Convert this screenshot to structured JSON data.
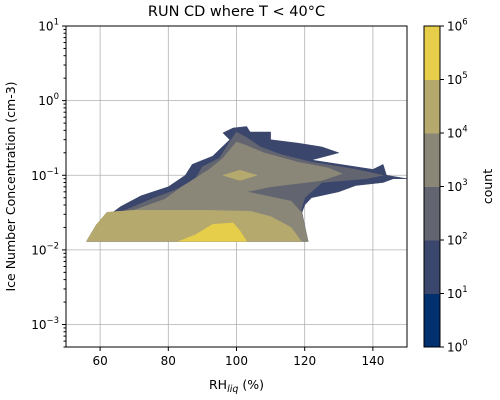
{
  "chart_data": {
    "type": "contourf",
    "title": "RUN CD where T < 40°C",
    "xlabel": "RH",
    "xlabel_sub": "liq",
    "xlabel_unit": " (%)",
    "ylabel": "Ice Number Concentration (cm-3)",
    "xlim": [
      50,
      150
    ],
    "ylim": [
      0.0005,
      10
    ],
    "yscale": "log",
    "grid": true,
    "x_ticks": [
      60,
      80,
      100,
      120,
      140
    ],
    "y_ticks": [
      {
        "value": 0.001,
        "base": "10",
        "exp": "−3"
      },
      {
        "value": 0.01,
        "base": "10",
        "exp": "−2"
      },
      {
        "value": 0.1,
        "base": "10",
        "exp": "−1"
      },
      {
        "value": 1,
        "base": "10",
        "exp": "0"
      },
      {
        "value": 10,
        "base": "10",
        "exp": "1"
      }
    ],
    "colorbar": {
      "label": "count",
      "scale": "log",
      "levels": [
        {
          "value": 1,
          "base": "10",
          "exp": "0"
        },
        {
          "value": 10,
          "base": "10",
          "exp": "1"
        },
        {
          "value": 100,
          "base": "10",
          "exp": "2"
        },
        {
          "value": 1000,
          "base": "10",
          "exp": "3"
        },
        {
          "value": 10000,
          "base": "10",
          "exp": "4"
        },
        {
          "value": 100000,
          "base": "10",
          "exp": "5"
        },
        {
          "value": 1000000,
          "base": "10",
          "exp": "6"
        }
      ],
      "colors": [
        "#00306e",
        "#3a466c",
        "#62656f",
        "#8a8779",
        "#b5a96e",
        "#e6cd4a"
      ]
    },
    "regions": [
      {
        "level": 1,
        "points": [
          [
            56,
            0.013
          ],
          [
            59,
            0.022
          ],
          [
            66,
            0.038
          ],
          [
            72,
            0.053
          ],
          [
            80,
            0.07
          ],
          [
            85,
            0.1
          ],
          [
            87,
            0.14
          ],
          [
            93,
            0.18
          ],
          [
            98,
            0.3
          ],
          [
            96,
            0.37
          ],
          [
            99,
            0.43
          ],
          [
            103,
            0.45
          ],
          [
            104,
            0.38
          ],
          [
            110,
            0.38
          ],
          [
            110,
            0.3
          ],
          [
            118,
            0.27
          ],
          [
            125,
            0.24
          ],
          [
            130,
            0.2
          ],
          [
            122,
            0.16
          ],
          [
            140,
            0.12
          ],
          [
            143,
            0.14
          ],
          [
            144,
            0.1
          ],
          [
            150,
            0.09
          ],
          [
            146,
            0.09
          ],
          [
            143,
            0.08
          ],
          [
            135,
            0.073
          ],
          [
            130,
            0.06
          ],
          [
            122,
            0.05
          ],
          [
            120,
            0.04
          ],
          [
            119,
            0.03
          ],
          [
            121,
            0.013
          ]
        ]
      },
      {
        "level": 2,
        "points": [
          [
            56,
            0.013
          ],
          [
            59,
            0.022
          ],
          [
            68,
            0.035
          ],
          [
            76,
            0.05
          ],
          [
            82,
            0.063
          ],
          [
            88,
            0.09
          ],
          [
            90,
            0.13
          ],
          [
            95,
            0.17
          ],
          [
            98,
            0.28
          ],
          [
            100,
            0.38
          ],
          [
            103,
            0.32
          ],
          [
            107,
            0.24
          ],
          [
            113,
            0.19
          ],
          [
            122,
            0.15
          ],
          [
            135,
            0.12
          ],
          [
            143,
            0.1
          ],
          [
            138,
            0.09
          ],
          [
            125,
            0.08
          ],
          [
            120,
            0.05
          ],
          [
            119,
            0.035
          ],
          [
            121,
            0.013
          ]
        ]
      },
      {
        "level": 3,
        "points": [
          [
            56,
            0.013
          ],
          [
            59,
            0.022
          ],
          [
            70,
            0.034
          ],
          [
            79,
            0.048
          ],
          [
            84,
            0.07
          ],
          [
            92,
            0.12
          ],
          [
            96,
            0.17
          ],
          [
            100,
            0.28
          ],
          [
            103,
            0.25
          ],
          [
            108,
            0.2
          ],
          [
            118,
            0.15
          ],
          [
            127,
            0.125
          ],
          [
            131,
            0.105
          ],
          [
            125,
            0.085
          ],
          [
            110,
            0.07
          ],
          [
            103,
            0.06
          ],
          [
            116,
            0.045
          ],
          [
            119,
            0.032
          ],
          [
            121,
            0.013
          ]
        ]
      },
      {
        "level": 4,
        "points": [
          [
            56,
            0.013
          ],
          [
            59,
            0.022
          ],
          [
            62,
            0.032
          ],
          [
            70,
            0.034
          ],
          [
            90,
            0.034
          ],
          [
            104,
            0.033
          ],
          [
            110,
            0.028
          ],
          [
            116,
            0.02
          ],
          [
            119,
            0.013
          ]
        ]
      },
      {
        "level": 5,
        "points": [
          [
            83,
            0.013
          ],
          [
            88,
            0.016
          ],
          [
            93,
            0.022
          ],
          [
            99,
            0.023
          ],
          [
            101,
            0.018
          ],
          [
            103,
            0.013
          ]
        ]
      },
      {
        "level": 4,
        "points": [
          [
            96,
            0.1
          ],
          [
            101,
            0.117
          ],
          [
            106,
            0.1
          ],
          [
            101,
            0.085
          ]
        ]
      }
    ]
  }
}
